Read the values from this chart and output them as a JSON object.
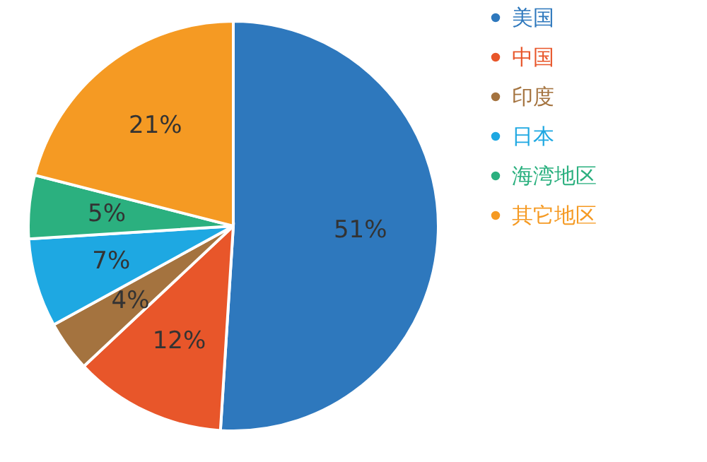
{
  "chart_data": {
    "type": "pie",
    "categories": [
      "美国",
      "中国",
      "印度",
      "日本",
      "海湾地区",
      "其它地区"
    ],
    "values": [
      51,
      12,
      4,
      7,
      5,
      21
    ],
    "colors": [
      "#2e78bd",
      "#e8562a",
      "#a4733f",
      "#1ea8e2",
      "#2bb07f",
      "#f59a23"
    ],
    "value_labels": [
      "51%",
      "12%",
      "4%",
      "7%",
      "5%",
      "21%"
    ],
    "legend": "right"
  }
}
